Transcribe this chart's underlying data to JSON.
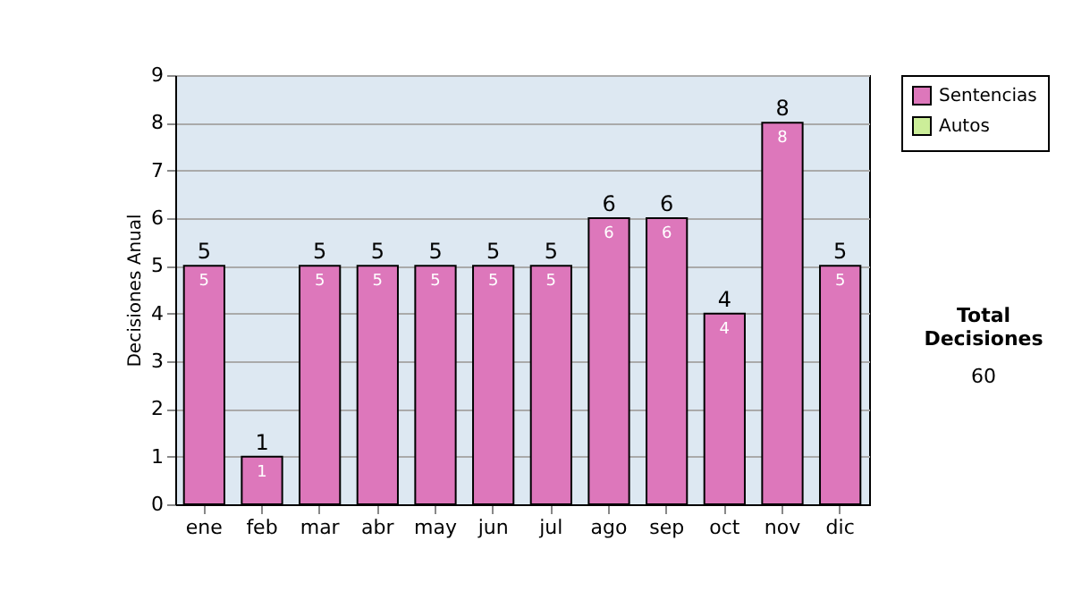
{
  "chart_data": {
    "type": "bar",
    "ylabel": "Decisiones Anual",
    "stacked": true,
    "categories": [
      "ene",
      "feb",
      "mar",
      "abr",
      "may",
      "jun",
      "jul",
      "ago",
      "sep",
      "oct",
      "nov",
      "dic"
    ],
    "series": [
      {
        "name": "Sentencias",
        "color": "#dd77bb",
        "values": [
          5,
          1,
          5,
          5,
          5,
          5,
          5,
          6,
          6,
          4,
          8,
          5
        ],
        "value_labels": [
          "5",
          "1",
          "5",
          "5",
          "5",
          "5",
          "5",
          "6",
          "6",
          "4",
          "8",
          "5"
        ]
      },
      {
        "name": "Autos",
        "color": "#ccee99",
        "values": [
          0,
          0,
          0,
          0,
          0,
          0,
          0,
          0,
          0,
          0,
          0,
          0
        ]
      }
    ],
    "totals": [
      "5",
      "1",
      "5",
      "5",
      "5",
      "5",
      "5",
      "6",
      "6",
      "4",
      "8",
      "5"
    ],
    "ylim": [
      0,
      9
    ],
    "yticks": [
      0,
      1,
      2,
      3,
      4,
      5,
      6,
      7,
      8,
      9
    ],
    "grid": "y",
    "legend": "right",
    "annotations": [
      "Total Decisiones",
      "60"
    ]
  }
}
